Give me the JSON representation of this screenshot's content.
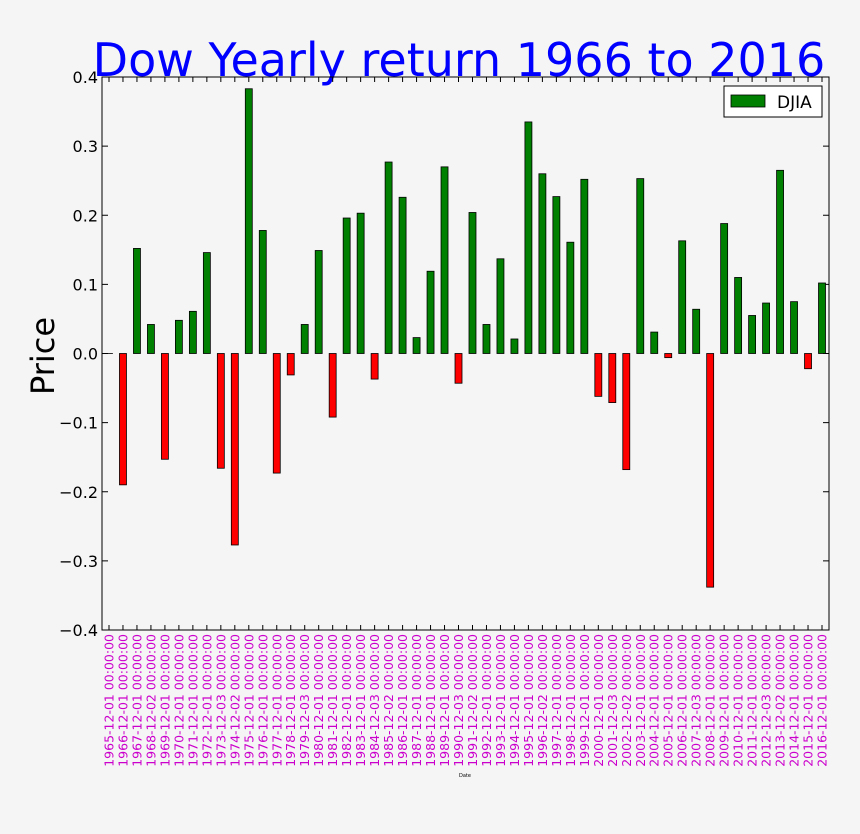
{
  "chart_data": {
    "type": "bar",
    "title": "Dow Yearly return 1966 to 2016",
    "xlabel": "Date",
    "ylabel": "Price",
    "ylim": [
      -0.4,
      0.4
    ],
    "yticks": [
      -0.4,
      -0.3,
      -0.2,
      -0.1,
      0.0,
      0.1,
      0.2,
      0.3,
      0.4
    ],
    "ytick_labels": [
      "−0.4",
      "−0.3",
      "−0.2",
      "−0.1",
      "0.0",
      "0.1",
      "0.2",
      "0.3",
      "0.4"
    ],
    "grid": false,
    "legend_position": "top-right",
    "series": [
      {
        "name": "DJIA",
        "legend_color": "#008000",
        "positive_color": "#008000",
        "negative_color": "#ff0000",
        "values": [
          0.0,
          -0.19,
          0.152,
          0.042,
          -0.153,
          0.048,
          0.061,
          0.146,
          -0.166,
          -0.277,
          0.383,
          0.178,
          -0.173,
          -0.031,
          0.042,
          0.149,
          -0.092,
          0.196,
          0.203,
          -0.037,
          0.277,
          0.226,
          0.023,
          0.119,
          0.27,
          -0.043,
          0.204,
          0.042,
          0.137,
          0.021,
          0.335,
          0.26,
          0.227,
          0.161,
          0.252,
          -0.062,
          -0.071,
          -0.168,
          0.253,
          0.031,
          -0.006,
          0.163,
          0.064,
          -0.338,
          0.188,
          0.11,
          0.055,
          0.073,
          0.265,
          0.075,
          -0.022,
          0.102
        ]
      }
    ],
    "categories": [
      "1965-12-01 00:00:00",
      "1966-12-01 00:00:00",
      "1967-12-01 00:00:00",
      "1968-12-02 00:00:00",
      "1969-12-01 00:00:00",
      "1970-12-01 00:00:00",
      "1971-12-01 00:00:00",
      "1972-12-01 00:00:00",
      "1973-12-03 00:00:00",
      "1974-12-02 00:00:00",
      "1975-12-01 00:00:00",
      "1976-12-01 00:00:00",
      "1977-12-01 00:00:00",
      "1978-12-01 00:00:00",
      "1979-12-03 00:00:00",
      "1980-12-01 00:00:00",
      "1981-12-01 00:00:00",
      "1982-12-01 00:00:00",
      "1983-12-01 00:00:00",
      "1984-12-03 00:00:00",
      "1985-12-02 00:00:00",
      "1986-12-01 00:00:00",
      "1987-12-01 00:00:00",
      "1988-12-01 00:00:00",
      "1989-12-01 00:00:00",
      "1990-12-03 00:00:00",
      "1991-12-02 00:00:00",
      "1992-12-01 00:00:00",
      "1993-12-01 00:00:00",
      "1994-12-01 00:00:00",
      "1995-12-01 00:00:00",
      "1996-12-02 00:00:00",
      "1997-12-01 00:00:00",
      "1998-12-01 00:00:00",
      "1999-12-01 00:00:00",
      "2000-12-01 00:00:00",
      "2001-12-03 00:00:00",
      "2002-12-02 00:00:00",
      "2003-12-01 00:00:00",
      "2004-12-01 00:00:00",
      "2005-12-01 00:00:00",
      "2006-12-01 00:00:00",
      "2007-12-03 00:00:00",
      "2008-12-01 00:00:00",
      "2009-12-01 00:00:00",
      "2010-12-01 00:00:00",
      "2011-12-01 00:00:00",
      "2012-12-03 00:00:00",
      "2013-12-02 00:00:00",
      "2014-12-01 00:00:00",
      "2015-12-01 00:00:00",
      "2016-12-01 00:00:00"
    ],
    "colors": {
      "title": "#0000ff",
      "tick_labels_x": "#cc00cc",
      "axis": "#000000",
      "plot_background": "#f5f5f5"
    }
  }
}
